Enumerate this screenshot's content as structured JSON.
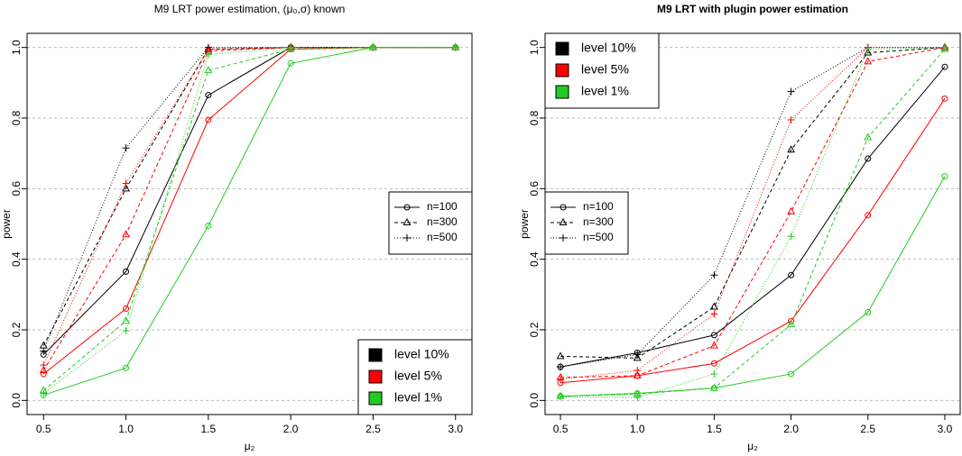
{
  "chart_data": [
    {
      "type": "line",
      "title": "M9 LRT power estimation, (μ₀,σ) known",
      "x_label": "μ₂",
      "y_label": "power",
      "x": [
        0.5,
        1,
        1.5,
        2,
        2.5,
        3
      ],
      "xlim": [
        0.4,
        3.1
      ],
      "ylim": [
        -0.04,
        1.04
      ],
      "xticks": [
        0.5,
        {
          "value": 1,
          "label": "1.0"
        },
        1.5,
        {
          "value": 2,
          "label": "2.0"
        },
        2.5,
        {
          "value": 3,
          "label": "3.0"
        }
      ],
      "yticks": [
        {
          "value": 0,
          "label": "0.0"
        },
        0.2,
        0.4,
        0.6,
        0.8,
        {
          "value": 1,
          "label": "1.0"
        }
      ],
      "grid": true,
      "level_legend": "bottomright",
      "size_legend": "right",
      "sizes": [
        {
          "name": "n=100",
          "marker": "circle",
          "dash": "solid"
        },
        {
          "name": "n=300",
          "marker": "triangle",
          "dash": "dashed"
        },
        {
          "name": "n=500",
          "marker": "plus",
          "dash": "dotted"
        }
      ],
      "levels": [
        {
          "name": "level 10%",
          "color": "#000000",
          "series": [
            [
              0.13,
              0.365,
              0.865,
              1,
              1,
              1
            ],
            [
              0.155,
              0.6,
              0.995,
              1,
              1,
              1
            ],
            [
              0.14,
              0.715,
              1,
              1,
              1,
              1
            ]
          ]
        },
        {
          "name": "level 5%",
          "color": "#ff0000",
          "series": [
            [
              0.075,
              0.26,
              0.795,
              0.995,
              1,
              1
            ],
            [
              0.085,
              0.47,
              0.99,
              1,
              1,
              1
            ],
            [
              0.1,
              0.615,
              0.995,
              1,
              1,
              1
            ]
          ]
        },
        {
          "name": "level 1%",
          "color": "#22cc22",
          "series": [
            [
              0.015,
              0.092,
              0.495,
              0.955,
              1,
              1
            ],
            [
              0.028,
              0.225,
              0.935,
              0.995,
              1,
              1
            ],
            [
              0.02,
              0.197,
              0.98,
              1,
              1,
              1
            ]
          ]
        }
      ]
    },
    {
      "type": "line",
      "title": "M9 LRT with plugin power estimation",
      "x_label": "μ₂",
      "y_label": "power",
      "x": [
        0.5,
        1,
        1.5,
        2,
        2.5,
        3
      ],
      "xlim": [
        0.4,
        3.1
      ],
      "ylim": [
        -0.04,
        1.04
      ],
      "xticks": [
        0.5,
        {
          "value": 1,
          "label": "1.0"
        },
        1.5,
        {
          "value": 2,
          "label": "2.0"
        },
        2.5,
        {
          "value": 3,
          "label": "3.0"
        }
      ],
      "yticks": [
        {
          "value": 0,
          "label": "0.0"
        },
        0.2,
        0.4,
        0.6,
        0.8,
        {
          "value": 1,
          "label": "1.0"
        }
      ],
      "grid": true,
      "level_legend": "topleft",
      "size_legend": "left",
      "sizes": [
        {
          "name": "n=100",
          "marker": "circle",
          "dash": "solid"
        },
        {
          "name": "n=300",
          "marker": "triangle",
          "dash": "dashed"
        },
        {
          "name": "n=500",
          "marker": "plus",
          "dash": "dotted"
        }
      ],
      "levels": [
        {
          "name": "level 10%",
          "color": "#000000",
          "series": [
            [
              0.095,
              0.135,
              0.185,
              0.355,
              0.685,
              0.945
            ],
            [
              0.125,
              0.12,
              0.265,
              0.71,
              0.985,
              1
            ],
            [
              0.095,
              0.13,
              0.355,
              0.875,
              1,
              1
            ]
          ]
        },
        {
          "name": "level 5%",
          "color": "#ff0000",
          "series": [
            [
              0.05,
              0.07,
              0.105,
              0.225,
              0.525,
              0.855
            ],
            [
              0.065,
              0.07,
              0.155,
              0.535,
              0.96,
              1
            ],
            [
              0.06,
              0.085,
              0.245,
              0.795,
              1,
              1
            ]
          ]
        },
        {
          "name": "level 1%",
          "color": "#22cc22",
          "series": [
            [
              0.012,
              0.02,
              0.035,
              0.075,
              0.25,
              0.635
            ],
            [
              0.012,
              0.018,
              0.035,
              0.215,
              0.745,
              0.995
            ],
            [
              0.01,
              0.008,
              0.075,
              0.465,
              0.995,
              1
            ]
          ]
        }
      ]
    }
  ]
}
